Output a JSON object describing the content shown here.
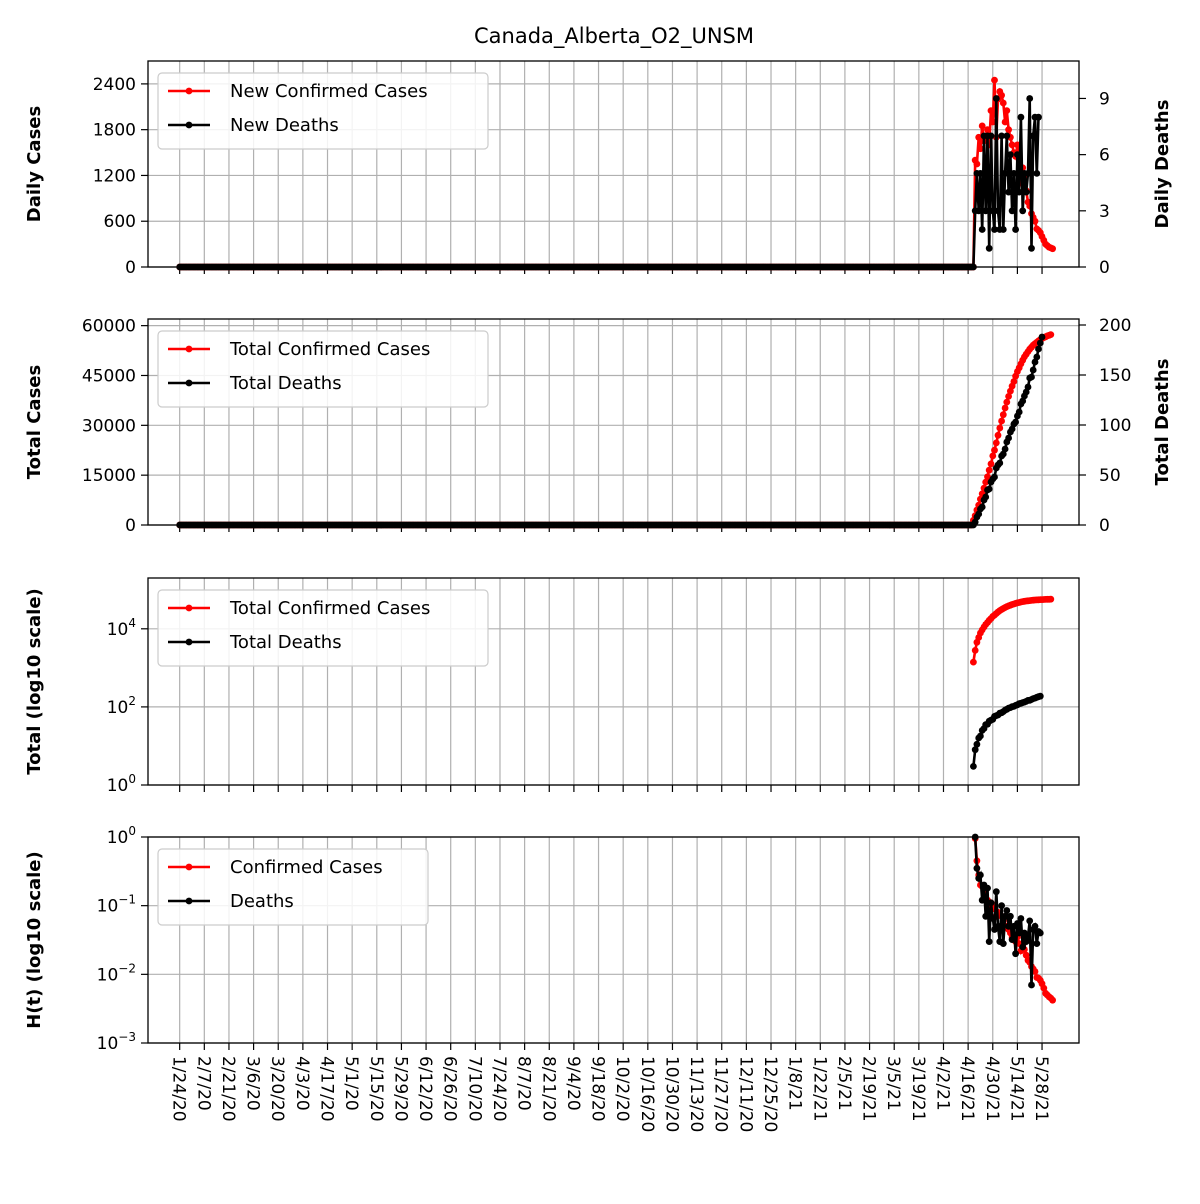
{
  "chart_data": {
    "type": "line",
    "title": "Canada_Alberta_O2_UNSM",
    "x_ticks": [
      "1/24/20",
      "2/7/20",
      "2/21/20",
      "3/6/20",
      "3/20/20",
      "4/3/20",
      "4/17/20",
      "5/1/20",
      "5/15/20",
      "5/29/20",
      "6/12/20",
      "6/26/20",
      "7/10/20",
      "7/24/20",
      "8/7/20",
      "8/21/20",
      "9/4/20",
      "9/18/20",
      "10/2/20",
      "10/16/20",
      "10/30/20",
      "11/13/20",
      "11/27/20",
      "12/11/20",
      "12/25/20",
      "1/8/21",
      "1/22/21",
      "2/5/21",
      "2/19/21",
      "3/5/21",
      "3/19/21",
      "4/2/21",
      "4/16/21",
      "4/30/21",
      "5/14/21",
      "5/28/21"
    ],
    "x_range": [
      "1/6/20",
      "6/18/21"
    ],
    "data_start": "1/24/20",
    "data_end": "6/3/21",
    "colors": {
      "cases": "#ff0000",
      "deaths": "#000000",
      "grid": "#b0b0b0"
    },
    "panels": [
      {
        "id": "daily",
        "ylabel": "Daily Cases",
        "ylabel_right": "Daily Deaths",
        "ylim": [
          0,
          2700
        ],
        "yticks": [
          0,
          600,
          1200,
          1800,
          2400
        ],
        "ylim_right": [
          0,
          11
        ],
        "yticks_right": [
          0,
          3,
          6,
          9
        ],
        "legend": [
          "New Confirmed Cases",
          "New Deaths"
        ],
        "legend_loc": "upper-left",
        "grid": true,
        "series": [
          {
            "name": "New Confirmed Cases",
            "axis": "left",
            "start_date": "4/20/21",
            "values": [
              1400,
              1350,
              1700,
              1550,
              1850,
              1650,
              1700,
              1800,
              1600,
              2050,
              1900,
              2450,
              1700,
              2200,
              2300,
              2250,
              2150,
              1900,
              2050,
              1800,
              1700,
              1600,
              1500,
              1450,
              1600,
              1400,
              1100,
              1300,
              1200,
              1000,
              850,
              800,
              700,
              650,
              600,
              500,
              480,
              450,
              400,
              350,
              300,
              280,
              260,
              250,
              240
            ]
          },
          {
            "name": "New Deaths",
            "axis": "right",
            "start_date": "4/19/21",
            "values": [
              0,
              3,
              5,
              3,
              5,
              2,
              7,
              3,
              7,
              1,
              7,
              3,
              2,
              9,
              3,
              2,
              7,
              2,
              5,
              7,
              4,
              6,
              3,
              5,
              2,
              6,
              4,
              8,
              3,
              5,
              4,
              5,
              9,
              1,
              7,
              8,
              5,
              8
            ]
          }
        ]
      },
      {
        "id": "total",
        "ylabel": "Total Cases",
        "ylabel_right": "Total Deaths",
        "ylim": [
          0,
          62000
        ],
        "yticks": [
          0,
          15000,
          30000,
          45000,
          60000
        ],
        "ylim_right": [
          0,
          206
        ],
        "yticks_right": [
          0,
          50,
          100,
          150,
          200
        ],
        "legend": [
          "Total Confirmed Cases",
          "Total Deaths"
        ],
        "legend_loc": "upper-left",
        "grid": true,
        "series": [
          {
            "name": "Total Confirmed Cases",
            "axis": "left",
            "start_date": "4/19/21",
            "values": [
              1400,
              2800,
              4500,
              6000,
              7800,
              9400,
              11100,
              12900,
              14500,
              16500,
              18400,
              20800,
              22500,
              24700,
              27000,
              29200,
              31300,
              33200,
              35200,
              37000,
              38700,
              40300,
              41800,
              43200,
              44800,
              46200,
              47300,
              48500,
              49600,
              50600,
              51400,
              52200,
              52900,
              53500,
              54100,
              54600,
              55000,
              55400,
              55800,
              56100,
              56400,
              56650,
              56900,
              57100,
              57300
            ]
          },
          {
            "name": "Total Deaths",
            "axis": "right",
            "start_date": "4/19/21",
            "values": [
              0,
              3,
              8,
              11,
              16,
              18,
              25,
              28,
              35,
              36,
              43,
              46,
              48,
              57,
              60,
              62,
              69,
              71,
              76,
              83,
              87,
              93,
              96,
              101,
              103,
              109,
              113,
              121,
              124,
              129,
              133,
              138,
              147,
              148,
              155,
              163,
              168,
              176,
              182,
              188
            ]
          }
        ]
      },
      {
        "id": "log_total",
        "ylabel": "Total (log10 scale)",
        "yscale": "log",
        "ylim": [
          1,
          200000
        ],
        "yticks": [
          1,
          100,
          10000
        ],
        "ytick_labels": [
          {
            "base": "10",
            "exp": "0"
          },
          {
            "base": "10",
            "exp": "2"
          },
          {
            "base": "10",
            "exp": "4"
          }
        ],
        "legend": [
          "Total Confirmed Cases",
          "Total Deaths"
        ],
        "legend_loc": "upper-left",
        "grid": true,
        "series": [
          {
            "name": "Total Confirmed Cases",
            "axis": "left",
            "start_date": "4/19/21",
            "values": [
              1400,
              2800,
              4500,
              6000,
              7800,
              9400,
              11100,
              12900,
              14500,
              16500,
              18400,
              20800,
              22500,
              24700,
              27000,
              29200,
              31300,
              33200,
              35200,
              37000,
              38700,
              40300,
              41800,
              43200,
              44800,
              46200,
              47300,
              48500,
              49600,
              50600,
              51400,
              52200,
              52900,
              53500,
              54100,
              54600,
              55000,
              55400,
              55800,
              56100,
              56400,
              56650,
              56900,
              57100,
              57300
            ]
          },
          {
            "name": "Total Deaths",
            "axis": "left",
            "start_date": "4/19/21",
            "values": [
              3,
              8,
              11,
              16,
              18,
              25,
              28,
              35,
              36,
              43,
              46,
              48,
              57,
              60,
              62,
              69,
              71,
              76,
              83,
              87,
              93,
              96,
              101,
              103,
              109,
              113,
              121,
              124,
              129,
              133,
              138,
              147,
              148,
              155,
              163,
              168,
              176,
              182,
              188
            ]
          }
        ]
      },
      {
        "id": "hazard",
        "ylabel": "H(t) (log10 scale)",
        "yscale": "log",
        "ylim": [
          0.001,
          1
        ],
        "yticks": [
          0.001,
          0.01,
          0.1,
          1
        ],
        "ytick_labels": [
          {
            "base": "10",
            "exp": "−3"
          },
          {
            "base": "10",
            "exp": "−2"
          },
          {
            "base": "10",
            "exp": "−1"
          },
          {
            "base": "10",
            "exp": "0"
          }
        ],
        "legend": [
          "Confirmed Cases",
          "Deaths"
        ],
        "legend_loc": "upper-left",
        "grid": true,
        "series": [
          {
            "name": "Confirmed Cases",
            "axis": "left",
            "start_date": "4/20/21",
            "values": [
              0.95,
              0.45,
              0.28,
              0.2,
              0.19,
              0.15,
              0.13,
              0.12,
              0.1,
              0.11,
              0.09,
              0.1,
              0.07,
              0.08,
              0.075,
              0.07,
              0.06,
              0.05,
              0.05,
              0.045,
              0.04,
              0.035,
              0.033,
              0.03,
              0.035,
              0.028,
              0.022,
              0.026,
              0.023,
              0.019,
              0.016,
              0.015,
              0.013,
              0.012,
              0.011,
              0.009,
              0.0088,
              0.0082,
              0.0073,
              0.0063,
              0.0053,
              0.005,
              0.0047,
              0.0045,
              0.0042
            ]
          },
          {
            "name": "Deaths",
            "axis": "left",
            "start_date": "4/20/21",
            "values": [
              1.0,
              0.35,
              0.25,
              0.28,
              0.12,
              0.2,
              0.07,
              0.18,
              0.03,
              0.11,
              0.065,
              0.045,
              0.16,
              0.05,
              0.03,
              0.1,
              0.028,
              0.07,
              0.085,
              0.05,
              0.07,
              0.032,
              0.05,
              0.02,
              0.055,
              0.04,
              0.065,
              0.025,
              0.04,
              0.03,
              0.035,
              0.06,
              0.007,
              0.045,
              0.05,
              0.028,
              0.042,
              0.04
            ]
          }
        ]
      }
    ]
  }
}
